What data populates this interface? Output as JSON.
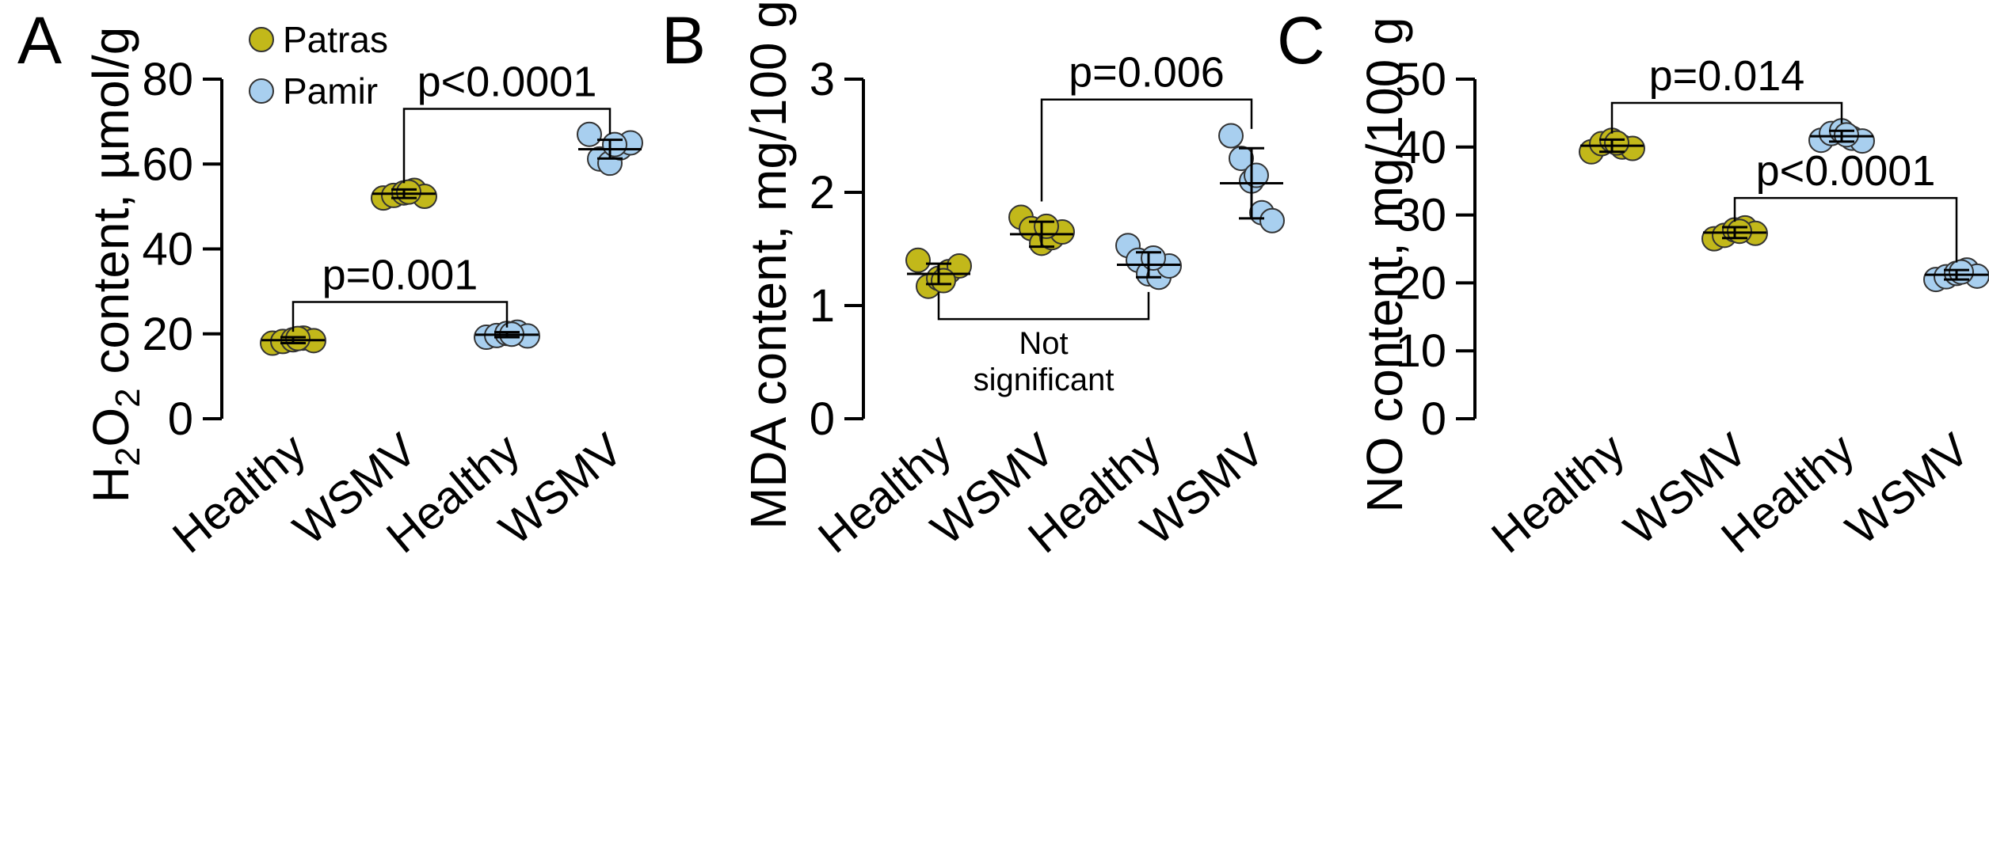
{
  "legend": [
    {
      "label": "Patras",
      "color": "#c2b81a"
    },
    {
      "label": "Pamir",
      "color": "#a8cfef"
    }
  ],
  "chart_data": [
    {
      "type": "scatter",
      "panel": "A",
      "ylabel_main": "H",
      "ylabel_sub1": "2",
      "ylabel_mid": "O",
      "ylabel_sub2": "2",
      "ylabel_tail": " content, µmol/g",
      "ylim": [
        0,
        80
      ],
      "yticks": [
        0,
        20,
        40,
        60,
        80
      ],
      "categories": [
        "Healthy",
        "WSMV",
        "Healthy",
        "WSMV"
      ],
      "groups": [
        {
          "cultivar": "Patras",
          "mean": 18.5,
          "sd": 0.7,
          "points": [
            17.8,
            18.2,
            18.6,
            19.0,
            18.4,
            18.9
          ]
        },
        {
          "cultivar": "Patras",
          "mean": 53.0,
          "sd": 1.0,
          "points": [
            52.0,
            52.6,
            53.2,
            53.8,
            52.4,
            53.4
          ]
        },
        {
          "cultivar": "Pamir",
          "mean": 19.8,
          "sd": 0.6,
          "points": [
            19.2,
            19.6,
            20.1,
            20.4,
            19.5,
            19.9
          ]
        },
        {
          "cultivar": "Pamir",
          "mean": 63.5,
          "sd": 2.2,
          "points": [
            67.0,
            61.2,
            60.2,
            63.8,
            65.0,
            64.6
          ]
        }
      ],
      "comparisons": [
        {
          "from": 0,
          "to": 2,
          "text": "p=0.001",
          "y": 27.5,
          "drop_from": 20.5,
          "drop_to": 21.5
        },
        {
          "from": 1,
          "to": 3,
          "text": "p<0.0001",
          "y": 73.0,
          "drop_from": 55.5,
          "drop_to": 67.0
        }
      ]
    },
    {
      "type": "scatter",
      "panel": "B",
      "ylabel": "MDA content, mg/100 g",
      "ylim": [
        0,
        3
      ],
      "yticks": [
        0,
        1,
        2,
        3
      ],
      "categories": [
        "Healthy",
        "WSMV",
        "Healthy",
        "WSMV"
      ],
      "groups": [
        {
          "cultivar": "Patras",
          "mean": 1.28,
          "sd": 0.09,
          "points": [
            1.4,
            1.17,
            1.24,
            1.3,
            1.35,
            1.22
          ]
        },
        {
          "cultivar": "Patras",
          "mean": 1.63,
          "sd": 0.11,
          "points": [
            1.78,
            1.68,
            1.55,
            1.6,
            1.65,
            1.7
          ]
        },
        {
          "cultivar": "Pamir",
          "mean": 1.36,
          "sd": 0.11,
          "points": [
            1.53,
            1.4,
            1.28,
            1.25,
            1.35,
            1.42
          ]
        },
        {
          "cultivar": "Pamir",
          "mean": 2.08,
          "sd": 0.31,
          "points": [
            2.5,
            2.3,
            2.1,
            1.82,
            1.75,
            2.15
          ]
        }
      ],
      "comparisons": [
        {
          "from": 1,
          "to": 3,
          "text": "p=0.006",
          "y": 2.82,
          "drop_from": 1.92,
          "drop_to": 2.56
        }
      ],
      "bottom_bracket": {
        "from": 0,
        "to": 2,
        "y": 0.88,
        "rise_to": 1.12,
        "text_line1": "Not",
        "text_line2": "significant"
      }
    },
    {
      "type": "scatter",
      "panel": "C",
      "ylabel": "NO content, mg/100 g",
      "ylim": [
        0,
        50
      ],
      "yticks": [
        0,
        10,
        20,
        30,
        40,
        50
      ],
      "categories": [
        "Healthy",
        "WSMV",
        "Healthy",
        "WSMV"
      ],
      "groups": [
        {
          "cultivar": "Patras",
          "mean": 40.2,
          "sd": 0.9,
          "points": [
            39.3,
            40.5,
            41.0,
            40.0,
            39.8,
            40.6
          ]
        },
        {
          "cultivar": "Patras",
          "mean": 27.4,
          "sd": 0.8,
          "points": [
            26.5,
            27.0,
            27.8,
            28.1,
            27.3,
            27.6
          ]
        },
        {
          "cultivar": "Pamir",
          "mean": 41.6,
          "sd": 0.8,
          "points": [
            41.0,
            42.0,
            42.4,
            41.3,
            40.9,
            41.8
          ]
        },
        {
          "cultivar": "Pamir",
          "mean": 21.2,
          "sd": 0.7,
          "points": [
            20.5,
            20.9,
            21.4,
            21.9,
            21.0,
            21.6
          ]
        }
      ],
      "comparisons": [
        {
          "from": 0,
          "to": 2,
          "text": "p=0.014",
          "y": 46.5,
          "drop_from": 42.0,
          "drop_to": 43.5
        },
        {
          "from": 1,
          "to": 3,
          "text": "p<0.0001",
          "y": 32.5,
          "drop_from": 29.0,
          "drop_to": 23.0
        }
      ]
    }
  ]
}
